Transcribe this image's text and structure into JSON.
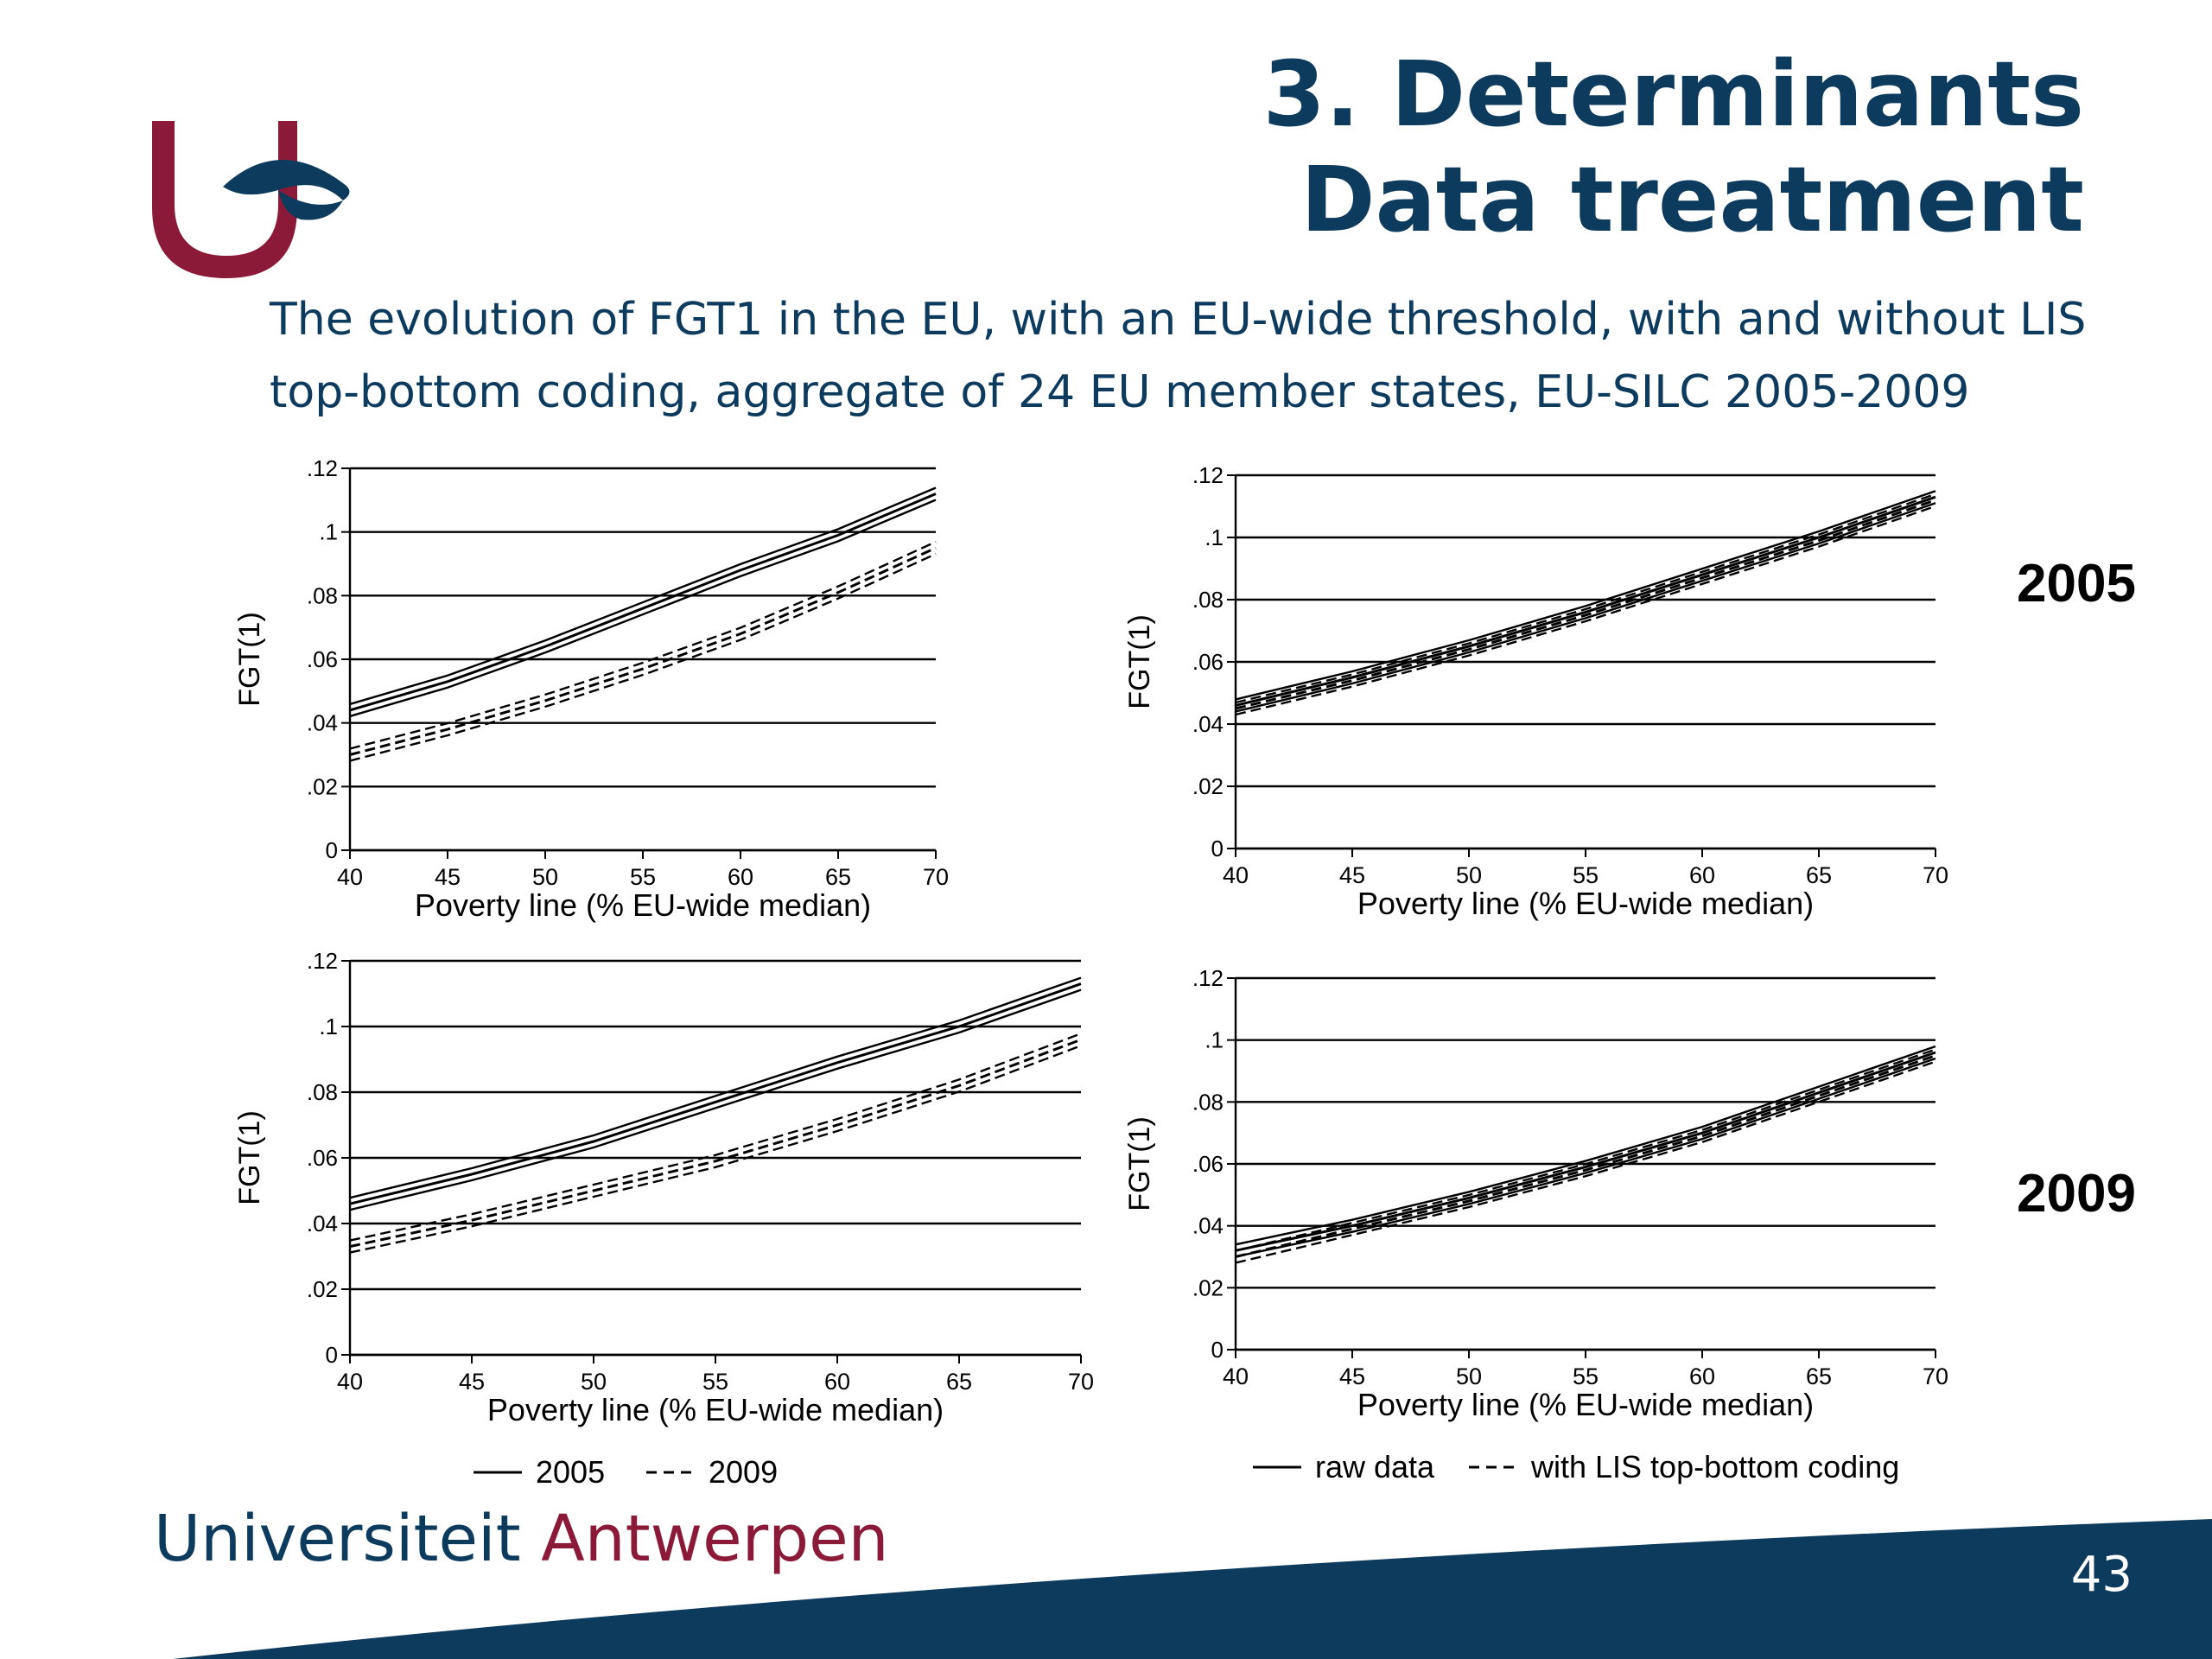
{
  "slide": {
    "title_line1": "3. Determinants",
    "title_line2": "Data treatment",
    "subtitle_line1": "The evolution of FGT1 in the EU, with an EU-wide threshold, with and without LIS",
    "subtitle_line2": "top-bottom coding, aggregate of 24 EU member states, EU-SILC 2005-2009",
    "year_2005": "2005",
    "year_2009": "2009",
    "footer_uni_part1": "Universiteit ",
    "footer_uni_part2": "Antwerpen",
    "page_number": "43"
  },
  "colors": {
    "brand_blue": "#0d3b5e",
    "brand_red": "#8b1a38",
    "line": "#000000"
  },
  "chart_data": [
    {
      "type": "line",
      "ylabel": "FGT(1)",
      "xlabel": "Poverty line (% EU-wide median)",
      "xticks": [
        "40",
        "45",
        "50",
        "55",
        "60",
        "65",
        "70"
      ],
      "yticks": [
        "0",
        ".02",
        ".04",
        ".06",
        ".08",
        ".1",
        ".12"
      ],
      "xlim": [
        40,
        70
      ],
      "ylim": [
        0,
        0.12
      ],
      "grid": "horizontal",
      "series": [
        {
          "name": "2005",
          "style": "solid",
          "x": [
            40,
            45,
            50,
            55,
            60,
            65,
            70
          ],
          "y": [
            0.044,
            0.053,
            0.064,
            0.076,
            0.088,
            0.099,
            0.112
          ]
        },
        {
          "name": "2009",
          "style": "dashed",
          "x": [
            40,
            45,
            50,
            55,
            60,
            65,
            70
          ],
          "y": [
            0.03,
            0.038,
            0.047,
            0.057,
            0.068,
            0.081,
            0.095
          ]
        }
      ]
    },
    {
      "type": "line",
      "ylabel": "FGT(1)",
      "xlabel": "Poverty line (% EU-wide median)",
      "xticks": [
        "40",
        "45",
        "50",
        "55",
        "60",
        "65",
        "70"
      ],
      "yticks": [
        "0",
        ".02",
        ".04",
        ".06",
        ".08",
        ".1",
        ".12"
      ],
      "xlim": [
        40,
        70
      ],
      "ylim": [
        0,
        0.12
      ],
      "grid": "horizontal",
      "series": [
        {
          "name": "raw data",
          "style": "solid",
          "x": [
            40,
            45,
            50,
            55,
            60,
            65,
            70
          ],
          "y": [
            0.046,
            0.055,
            0.065,
            0.076,
            0.088,
            0.1,
            0.113
          ]
        },
        {
          "name": "with LIS top-bottom coding",
          "style": "dashed",
          "x": [
            40,
            45,
            50,
            55,
            60,
            65,
            70
          ],
          "y": [
            0.045,
            0.054,
            0.064,
            0.075,
            0.087,
            0.099,
            0.112
          ]
        }
      ]
    },
    {
      "type": "line",
      "ylabel": "FGT(1)",
      "xlabel": "Poverty line (% EU-wide median)",
      "xticks": [
        "40",
        "45",
        "50",
        "55",
        "60",
        "65",
        "70"
      ],
      "yticks": [
        "0",
        ".02",
        ".04",
        ".06",
        ".08",
        ".1",
        ".12"
      ],
      "xlim": [
        40,
        70
      ],
      "ylim": [
        0,
        0.12
      ],
      "grid": "horizontal",
      "series": [
        {
          "name": "2005",
          "style": "solid",
          "x": [
            40,
            45,
            50,
            55,
            60,
            65,
            70
          ],
          "y": [
            0.046,
            0.055,
            0.065,
            0.077,
            0.089,
            0.1,
            0.113
          ]
        },
        {
          "name": "2009",
          "style": "dashed",
          "x": [
            40,
            45,
            50,
            55,
            60,
            65,
            70
          ],
          "y": [
            0.033,
            0.041,
            0.05,
            0.059,
            0.07,
            0.082,
            0.096
          ]
        }
      ],
      "legend": {
        "items": [
          "2005",
          "2009"
        ],
        "styles": [
          "solid",
          "dashed"
        ],
        "placement": "bottom"
      }
    },
    {
      "type": "line",
      "ylabel": "FGT(1)",
      "xlabel": "Poverty line (% EU-wide median)",
      "xticks": [
        "40",
        "45",
        "50",
        "55",
        "60",
        "65",
        "70"
      ],
      "yticks": [
        "0",
        ".02",
        ".04",
        ".06",
        ".08",
        ".1",
        ".12"
      ],
      "xlim": [
        40,
        70
      ],
      "ylim": [
        0,
        0.12
      ],
      "grid": "horizontal",
      "series": [
        {
          "name": "raw data",
          "style": "solid",
          "x": [
            40,
            45,
            50,
            55,
            60,
            65,
            70
          ],
          "y": [
            0.032,
            0.04,
            0.049,
            0.059,
            0.07,
            0.083,
            0.096
          ]
        },
        {
          "name": "with LIS top-bottom coding",
          "style": "dashed",
          "x": [
            40,
            45,
            50,
            55,
            60,
            65,
            70
          ],
          "y": [
            0.03,
            0.039,
            0.048,
            0.058,
            0.069,
            0.082,
            0.095
          ]
        }
      ],
      "legend": {
        "items": [
          "raw data",
          "with LIS top-bottom coding"
        ],
        "styles": [
          "solid",
          "dashed"
        ],
        "placement": "bottom"
      }
    }
  ]
}
